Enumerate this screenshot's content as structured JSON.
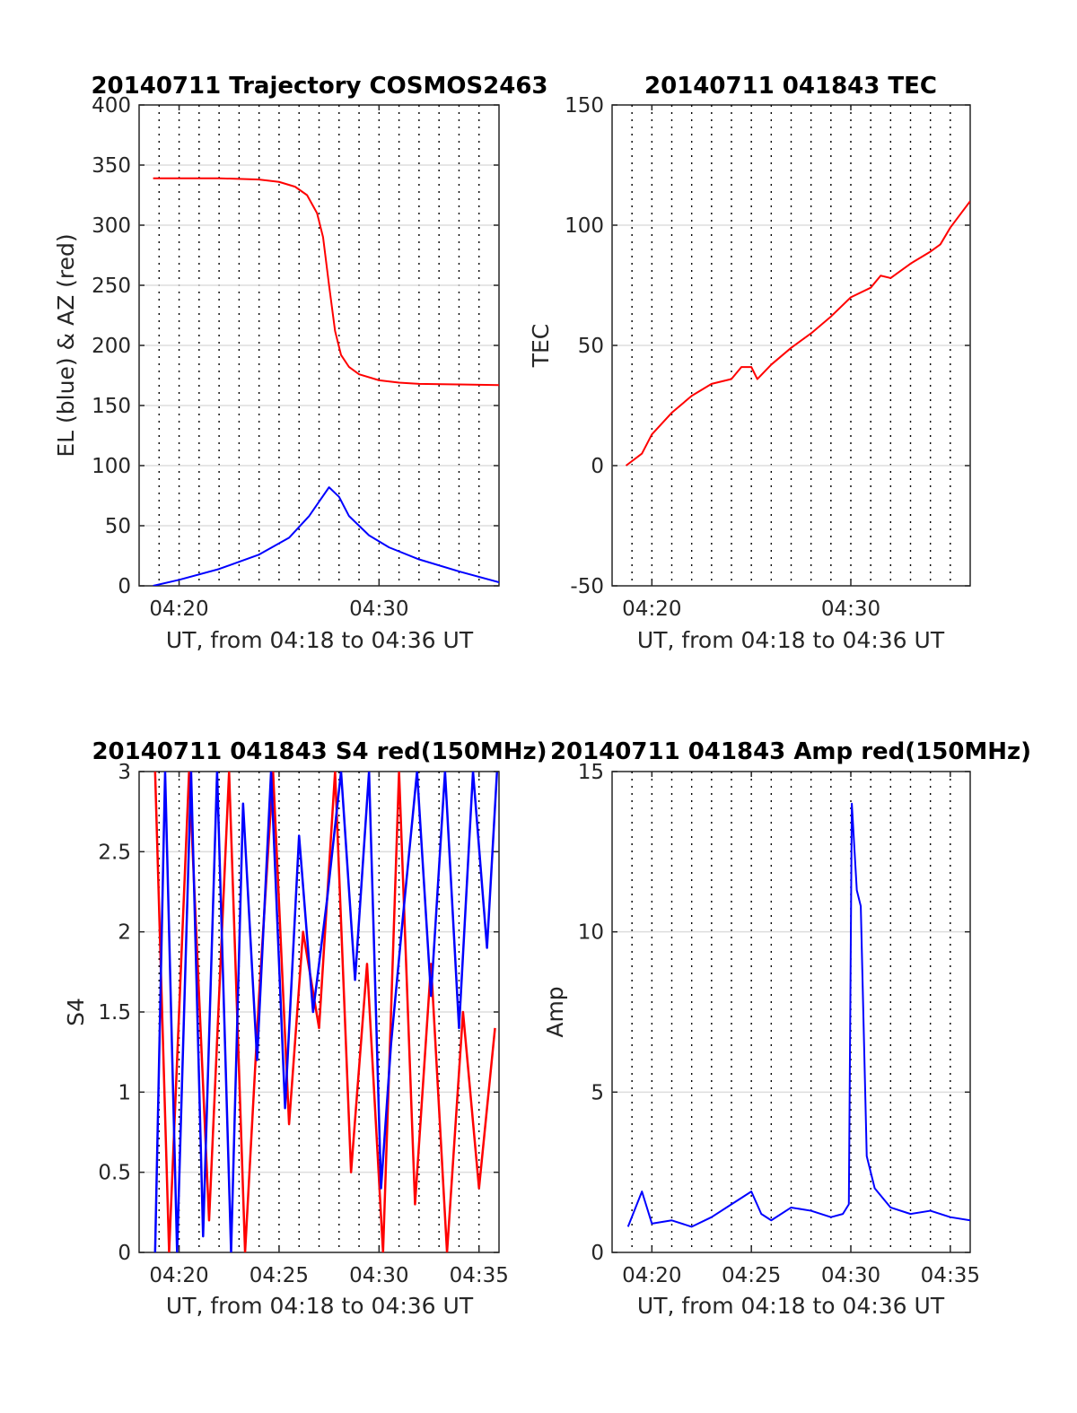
{
  "chart_data": [
    {
      "type": "line",
      "title": "20140711 Trajectory COSMOS2463",
      "xlabel": "UT, from 04:18 to 04:36 UT",
      "ylabel": "EL (blue) & AZ (red)",
      "xlim": [
        "04:18",
        "04:36"
      ],
      "ylim": [
        0,
        400
      ],
      "xticks": [
        "04:20",
        "04:30"
      ],
      "yticks": [
        "0",
        "50",
        "100",
        "150",
        "200",
        "250",
        "300",
        "350",
        "400"
      ],
      "grid": true,
      "series": [
        {
          "color": "#ff0000",
          "x": [
            "04:18.7",
            "04:20",
            "04:22",
            "04:24",
            "04:25",
            "04:25.8",
            "04:26.4",
            "04:26.9",
            "04:27.2",
            "04:27.5",
            "04:27.8",
            "04:28.1",
            "04:28.5",
            "04:29",
            "04:30",
            "04:31",
            "04:32",
            "04:34",
            "04:36"
          ],
          "values": [
            339,
            339,
            339,
            338,
            336,
            332,
            325,
            310,
            290,
            250,
            212,
            192,
            182,
            176,
            171,
            169,
            168,
            167.5,
            167
          ]
        },
        {
          "color": "#0000ff",
          "x": [
            "04:18.7",
            "04:20",
            "04:22",
            "04:24",
            "04:25.5",
            "04:26.5",
            "04:27",
            "04:27.5",
            "04:28",
            "04:28.5",
            "04:29.5",
            "04:30.5",
            "04:32",
            "04:34",
            "04:36"
          ],
          "values": [
            0,
            5,
            14,
            26,
            40,
            58,
            70,
            82,
            74,
            58,
            42,
            32,
            22,
            12,
            3
          ]
        }
      ]
    },
    {
      "type": "line",
      "title": "20140711 041843 TEC",
      "xlabel": "UT, from 04:18 to 04:36 UT",
      "ylabel": "TEC",
      "xlim": [
        "04:18",
        "04:36"
      ],
      "ylim": [
        -50,
        150
      ],
      "xticks": [
        "04:20",
        "04:30"
      ],
      "yticks": [
        "-50",
        "0",
        "50",
        "100",
        "150"
      ],
      "grid": true,
      "series": [
        {
          "color": "#ff0000",
          "x": [
            "04:18.7",
            "04:19.5",
            "04:20",
            "04:21",
            "04:22",
            "04:23",
            "04:24",
            "04:24.5",
            "04:25",
            "04:25.3",
            "04:26",
            "04:27",
            "04:28",
            "04:29",
            "04:30",
            "04:31",
            "04:31.5",
            "04:32",
            "04:33",
            "04:34",
            "04:34.5",
            "04:35",
            "04:36"
          ],
          "values": [
            0,
            5,
            13,
            22,
            29,
            34,
            36,
            41,
            41,
            36,
            42,
            49,
            55,
            62,
            70,
            74,
            79,
            78,
            84,
            89,
            92,
            99,
            110
          ]
        }
      ]
    },
    {
      "type": "line",
      "title": "20140711 041843 S4 red(150MHz)",
      "xlabel": "UT, from 04:18 to 04:36 UT",
      "ylabel": "S4",
      "xlim": [
        "04:18",
        "04:36"
      ],
      "ylim": [
        0,
        3
      ],
      "xticks": [
        "04:20",
        "04:25",
        "04:30",
        "04:35"
      ],
      "yticks": [
        "0",
        "0.5",
        "1",
        "1.5",
        "2",
        "2.5",
        "3"
      ],
      "grid": true,
      "series": [
        {
          "color": "#ff0000",
          "x": [
            "04:18.8",
            "04:19.5",
            "04:20.5",
            "04:21.5",
            "04:22.5",
            "04:23.3",
            "04:24",
            "04:24.7",
            "04:25.5",
            "04:26.2",
            "04:27",
            "04:27.8",
            "04:28.6",
            "04:29.4",
            "04:30.2",
            "04:31",
            "04:31.8",
            "04:32.6",
            "04:33.4",
            "04:34.2",
            "04:35",
            "04:35.8"
          ],
          "values": [
            3,
            0,
            3,
            0.2,
            3,
            0,
            1.6,
            3,
            0.8,
            2,
            1.4,
            3,
            0.5,
            1.8,
            0,
            3,
            0.3,
            1.8,
            0,
            1.5,
            0.4,
            1.4
          ]
        },
        {
          "color": "#0000ff",
          "x": [
            "04:18.8",
            "04:19.3",
            "04:19.9",
            "04:20.6",
            "04:21.2",
            "04:21.9",
            "04:22.6",
            "04:23.2",
            "04:23.9",
            "04:24.6",
            "04:25.3",
            "04:26",
            "04:26.7",
            "04:27.4",
            "04:28.1",
            "04:28.8",
            "04:29.5",
            "04:30.1",
            "04:30.6",
            "04:31.2",
            "04:31.9",
            "04:32.6",
            "04:33.3",
            "04:34",
            "04:34.7",
            "04:35.4",
            "04:35.9"
          ],
          "values": [
            0,
            3,
            0,
            3,
            0.1,
            3,
            0,
            2.8,
            1.2,
            3,
            0.9,
            2.6,
            1.5,
            2.2,
            3,
            1.7,
            3,
            0.4,
            1.3,
            2.1,
            3,
            1.6,
            3,
            1.4,
            3,
            1.9,
            3
          ]
        }
      ]
    },
    {
      "type": "line",
      "title": "20140711 041843 Amp red(150MHz)",
      "xlabel": "UT, from 04:18 to 04:36 UT",
      "ylabel": "Amp",
      "xlim": [
        "04:18",
        "04:36"
      ],
      "ylim": [
        0,
        15
      ],
      "xticks": [
        "04:20",
        "04:25",
        "04:30",
        "04:35"
      ],
      "yticks": [
        "0",
        "5",
        "10",
        "15"
      ],
      "grid": true,
      "series": [
        {
          "color": "#0000ff",
          "x": [
            "04:18.8",
            "04:19.5",
            "04:20",
            "04:21",
            "04:22",
            "04:23",
            "04:24",
            "04:25",
            "04:25.5",
            "04:26",
            "04:27",
            "04:28",
            "04:29",
            "04:29.6",
            "04:29.9",
            "04:30.05",
            "04:30.3",
            "04:30.5",
            "04:30.8",
            "04:31.2",
            "04:32",
            "04:33",
            "04:34",
            "04:35",
            "04:36"
          ],
          "values": [
            0.8,
            1.9,
            0.9,
            1.0,
            0.8,
            1.1,
            1.5,
            1.9,
            1.2,
            1.0,
            1.4,
            1.3,
            1.1,
            1.2,
            1.5,
            14,
            11.3,
            10.8,
            3.0,
            2.0,
            1.4,
            1.2,
            1.3,
            1.1,
            1.0
          ]
        }
      ]
    }
  ]
}
